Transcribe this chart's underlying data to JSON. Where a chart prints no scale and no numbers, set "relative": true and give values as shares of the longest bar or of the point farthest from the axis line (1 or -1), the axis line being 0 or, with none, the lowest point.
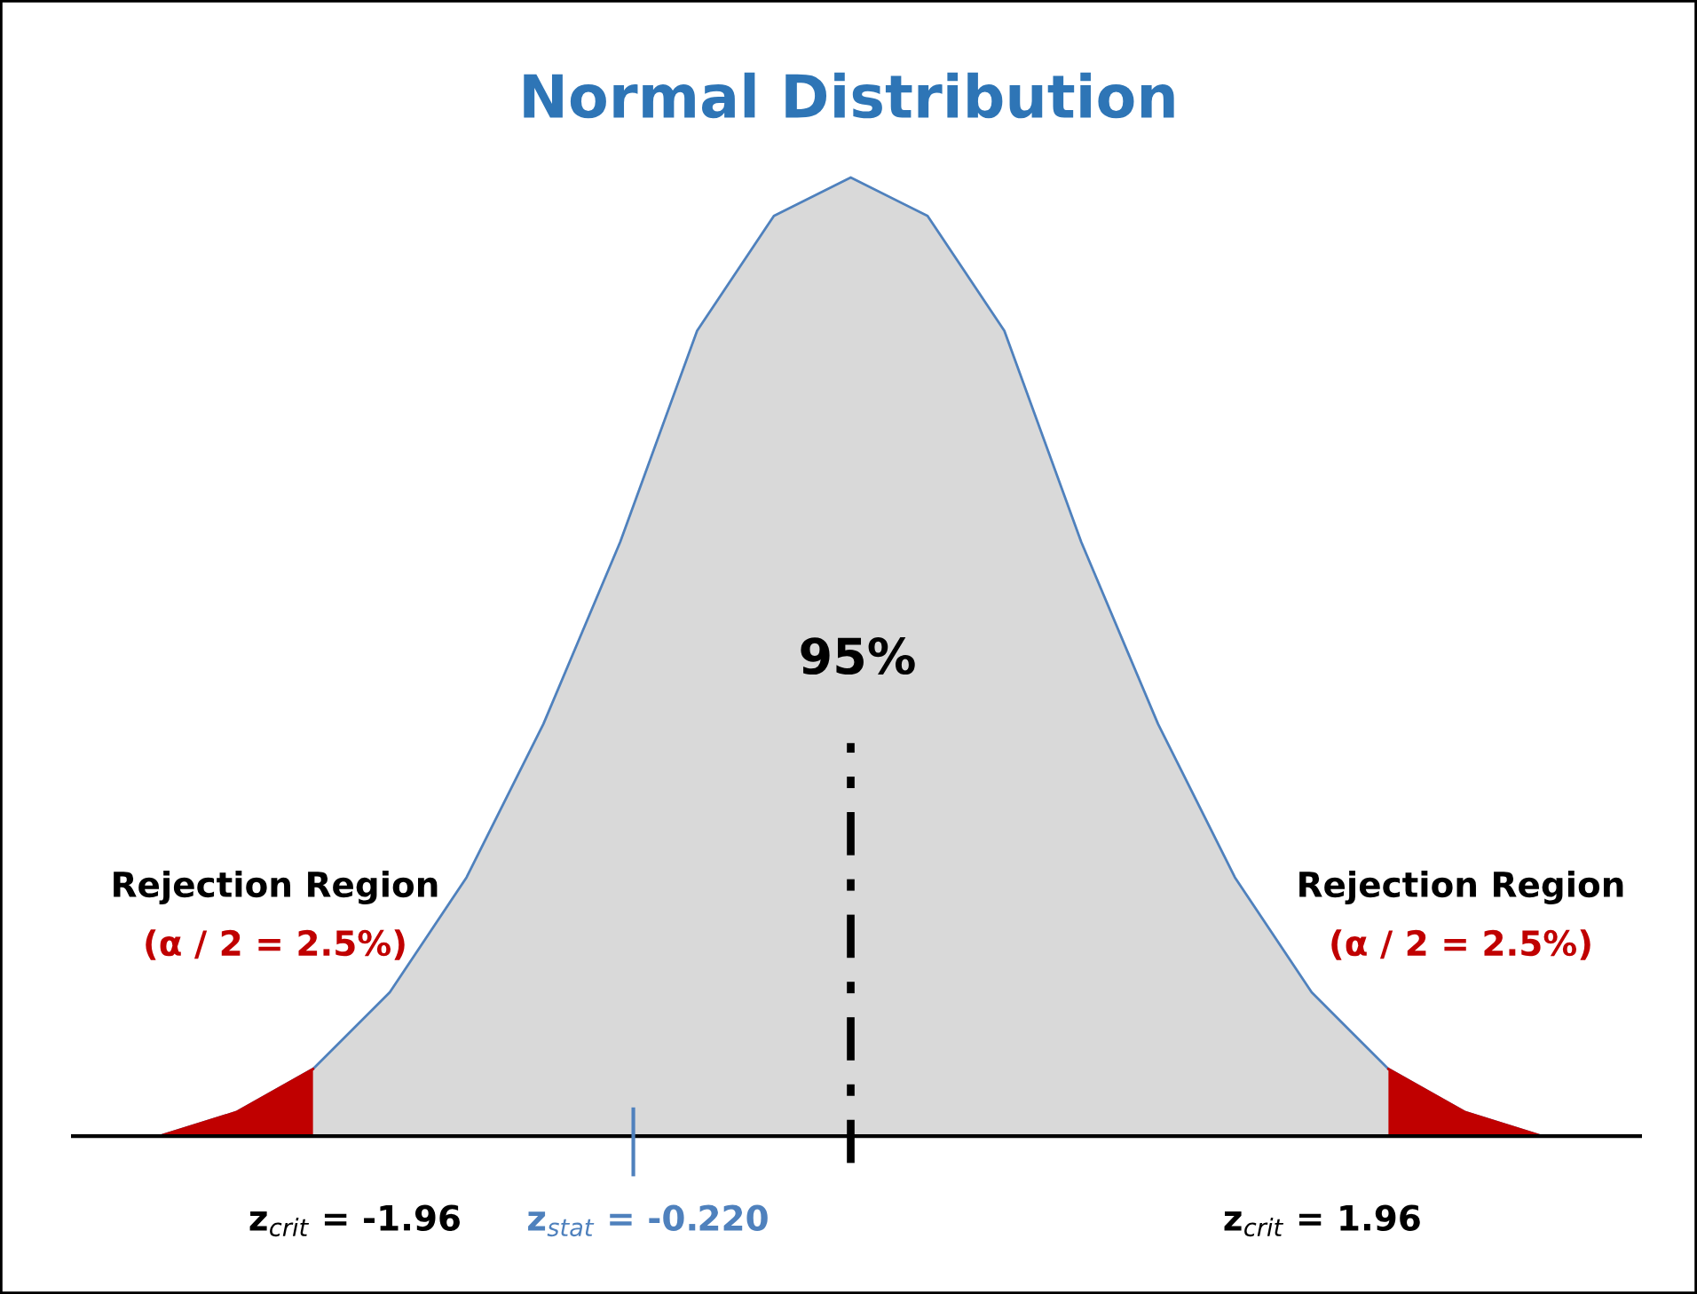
{
  "chart_data": {
    "type": "area",
    "title": "Normal Distribution",
    "relative": true,
    "categories": [
      null,
      null,
      null,
      null,
      null,
      null,
      null,
      null,
      null,
      null,
      null,
      null,
      null,
      null,
      null,
      null,
      null,
      null,
      null
    ],
    "series": [
      {
        "color": "#d9d9d9",
        "values": [
          0,
          0.025,
          0.07,
          0.15,
          0.27,
          0.43,
          0.62,
          0.84,
          0.96,
          1,
          0.96,
          0.84,
          0.62,
          0.43,
          0.27,
          0.15,
          0.07,
          0.025,
          0
        ]
      },
      {
        "color": "#c00000",
        "values": [
          0,
          0.025,
          0.07,
          null,
          null,
          null,
          null,
          null,
          null,
          null,
          null,
          null,
          null,
          null,
          null,
          null,
          0.07,
          0.025,
          0
        ]
      }
    ],
    "annotations": [
      "95%",
      "Rejection Region",
      "(α / 2 = 2.5%)",
      "Rejection Region",
      "(α / 2 = 2.5%)",
      "z$_{crit}$ = -1.96",
      "z$_{stat}$ = -0.220",
      "z$_{crit}$ = 1.96"
    ]
  }
}
